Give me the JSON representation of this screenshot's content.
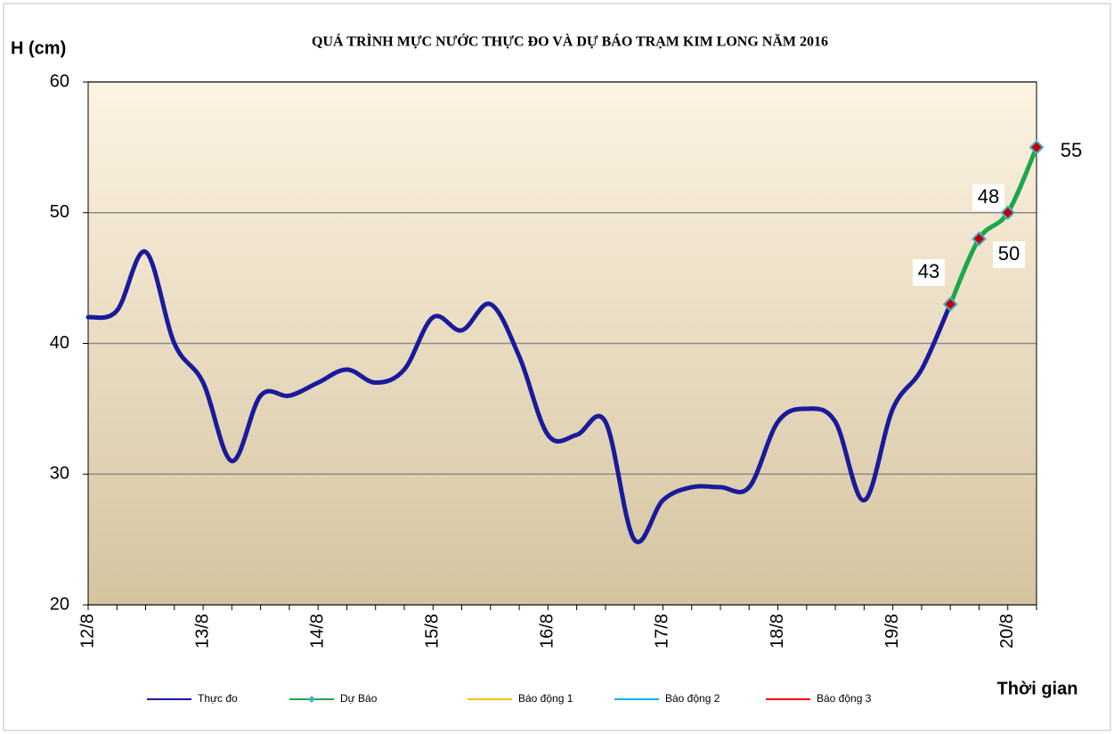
{
  "chart_data": {
    "type": "line",
    "title": "QUÁ TRÌNH MỰC NƯỚC THỰC ĐO VÀ DỰ BÁO TRẠM KIM LONG NĂM 2016",
    "ylabel": "H (cm)",
    "xlabel": "Thời gian",
    "categories": [
      "12/8",
      null,
      null,
      null,
      "13/8",
      null,
      null,
      null,
      "14/8",
      null,
      null,
      null,
      "15/8",
      null,
      null,
      null,
      "16/8",
      null,
      null,
      null,
      "17/8",
      null,
      null,
      null,
      "18/8",
      null,
      null,
      null,
      "19/8",
      null,
      null,
      null,
      "20/8",
      null
    ],
    "series": [
      {
        "name": "Thực đo",
        "color": "#1a1a9c",
        "values": [
          42,
          42.5,
          47,
          40,
          37,
          31,
          36,
          36,
          37,
          38,
          37,
          38,
          42,
          41,
          43,
          39,
          33,
          33,
          34,
          25,
          28,
          29,
          29,
          29,
          34,
          35,
          34,
          28,
          35,
          38,
          43,
          null,
          null,
          null
        ]
      },
      {
        "name": "Dự Báo",
        "color": "#1aa84a",
        "marker": "diamond",
        "values": [
          null,
          null,
          null,
          null,
          null,
          null,
          null,
          null,
          null,
          null,
          null,
          null,
          null,
          null,
          null,
          null,
          null,
          null,
          null,
          null,
          null,
          null,
          null,
          null,
          null,
          null,
          null,
          null,
          null,
          null,
          43,
          48,
          50,
          55
        ]
      },
      {
        "name": "Báo động 1",
        "color": "#ffc000",
        "values": [
          null,
          null,
          null,
          null,
          null,
          null,
          null,
          null,
          null,
          null,
          null,
          null,
          null,
          null,
          null,
          null,
          null,
          null,
          null,
          null,
          null,
          null,
          null,
          null,
          null,
          null,
          null,
          null,
          null,
          null,
          null,
          null,
          null,
          null
        ]
      },
      {
        "name": "Báo động 2",
        "color": "#00b0f0",
        "values": [
          null,
          null,
          null,
          null,
          null,
          null,
          null,
          null,
          null,
          null,
          null,
          null,
          null,
          null,
          null,
          null,
          null,
          null,
          null,
          null,
          null,
          null,
          null,
          null,
          null,
          null,
          null,
          null,
          null,
          null,
          null,
          null,
          null,
          null
        ]
      },
      {
        "name": "Báo động 3",
        "color": "#ff0000",
        "values": [
          null,
          null,
          null,
          null,
          null,
          null,
          null,
          null,
          null,
          null,
          null,
          null,
          null,
          null,
          null,
          null,
          null,
          null,
          null,
          null,
          null,
          null,
          null,
          null,
          null,
          null,
          null,
          null,
          null,
          null,
          null,
          null,
          null,
          null
        ]
      }
    ],
    "ylim": [
      20,
      60
    ],
    "yticks": [
      20,
      30,
      40,
      50,
      60
    ],
    "grid": true,
    "legend": "bottom"
  }
}
